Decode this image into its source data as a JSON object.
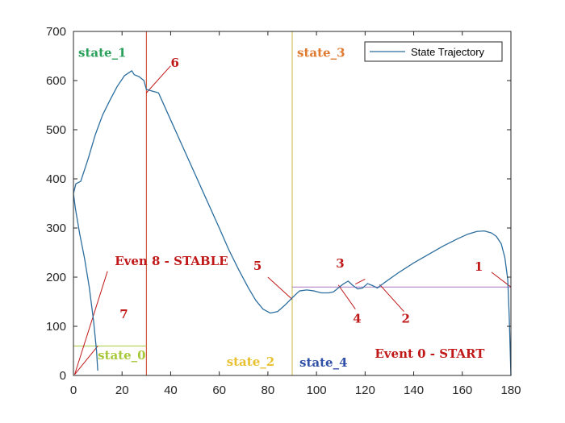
{
  "chart_data": {
    "type": "line",
    "xlim": [
      0,
      180
    ],
    "ylim": [
      0,
      700
    ],
    "x_ticks": [
      0,
      20,
      40,
      60,
      80,
      100,
      120,
      140,
      160,
      180
    ],
    "y_ticks": [
      0,
      100,
      200,
      300,
      400,
      500,
      600,
      700
    ],
    "grid": false,
    "legend": {
      "position": "top-right",
      "entries": [
        "State Trajectory"
      ]
    },
    "series": [
      {
        "name": "State Trajectory",
        "color": "#2c6e9e",
        "x": [
          180,
          179.3,
          178.7,
          177.5,
          176,
          174,
          172,
          169,
          166,
          162,
          158,
          152,
          146,
          140,
          134,
          128,
          125,
          123,
          121,
          119,
          117,
          115,
          113,
          111,
          109,
          107,
          105,
          102,
          99,
          96,
          93,
          90,
          87,
          84,
          81,
          78,
          75,
          72,
          68,
          64,
          60,
          55,
          50,
          45,
          40,
          35,
          30,
          29,
          27,
          25,
          24,
          21,
          18,
          15,
          12,
          9,
          6,
          3,
          1,
          0,
          0.8,
          2.5,
          4.5,
          6.5,
          8.3,
          9.5,
          10
        ],
        "y": [
          0,
          120,
          195,
          240,
          268,
          283,
          290,
          294,
          293,
          287,
          278,
          263,
          246,
          229,
          210,
          189,
          178,
          183,
          187,
          178,
          176,
          183,
          192,
          186,
          178,
          170,
          168,
          168,
          172,
          174,
          172,
          158,
          143,
          130,
          127,
          135,
          153,
          178,
          215,
          255,
          300,
          355,
          410,
          465,
          520,
          575,
          582,
          600,
          608,
          612,
          620,
          610,
          588,
          560,
          530,
          490,
          440,
          395,
          390,
          370,
          340,
          290,
          240,
          180,
          110,
          50,
          10
        ]
      }
    ],
    "reference_lines": [
      {
        "orientation": "vertical",
        "x": 30,
        "color": "#c83a1f"
      },
      {
        "orientation": "vertical",
        "x": 90,
        "color": "#c8b83c"
      },
      {
        "orientation": "horizontal",
        "y": 180,
        "x_range": [
          90,
          180
        ],
        "color": "#a878c0"
      },
      {
        "orientation": "horizontal",
        "y": 60,
        "x_range": [
          0,
          30
        ],
        "color": "#a8c83c"
      }
    ],
    "leader_lines": [
      {
        "from": [
          0.5,
          2
        ],
        "to": [
          14,
          212
        ],
        "color": "#c01818"
      },
      {
        "from": [
          0.5,
          2
        ],
        "to": [
          10,
          60
        ],
        "color": "#c01818"
      },
      {
        "from": [
          30,
          575
        ],
        "to": [
          40,
          630
        ],
        "color": "#c01818"
      },
      {
        "from": [
          90,
          155
        ],
        "to": [
          80,
          200
        ],
        "color": "#c01818"
      },
      {
        "from": [
          180,
          180
        ],
        "to": [
          172,
          210
        ],
        "color": "#c01818"
      },
      {
        "from": [
          180,
          180
        ],
        "to": [
          180,
          0
        ],
        "color": "#c01818"
      },
      {
        "from": [
          126,
          185
        ],
        "to": [
          136,
          130
        ],
        "color": "#c01818"
      },
      {
        "from": [
          120,
          196
        ],
        "to": [
          116,
          186
        ],
        "color": "#c01818"
      },
      {
        "from": [
          109,
          184
        ],
        "to": [
          116,
          135
        ],
        "color": "#c01818"
      }
    ],
    "annotations": [
      {
        "text": "state_1",
        "x": 2,
        "y": 648,
        "color": "#2aa05a"
      },
      {
        "text": "state_3",
        "x": 92,
        "y": 648,
        "color": "#e07a30"
      },
      {
        "text": "6",
        "x": 40,
        "y": 628,
        "color": "#c01818"
      },
      {
        "text": "Even 8 - STABLE",
        "x": 17,
        "y": 225,
        "color": "#c01818"
      },
      {
        "text": "5",
        "x": 74,
        "y": 215,
        "color": "#c01818"
      },
      {
        "text": "3",
        "x": 108,
        "y": 220,
        "color": "#c01818"
      },
      {
        "text": "1",
        "x": 165,
        "y": 213,
        "color": "#c01818"
      },
      {
        "text": "4",
        "x": 115,
        "y": 107,
        "color": "#c01818"
      },
      {
        "text": "2",
        "x": 135,
        "y": 107,
        "color": "#c01818"
      },
      {
        "text": "7",
        "x": 19,
        "y": 116,
        "color": "#c01818"
      },
      {
        "text": "state_0",
        "x": 10,
        "y": 33,
        "color": "#a8c83c"
      },
      {
        "text": "state_2",
        "x": 63,
        "y": 20,
        "color": "#e8c030"
      },
      {
        "text": "state_4",
        "x": 93,
        "y": 18,
        "color": "#3050a8"
      },
      {
        "text": "Event 0 - START",
        "x": 124,
        "y": 36,
        "color": "#c01818"
      }
    ]
  }
}
